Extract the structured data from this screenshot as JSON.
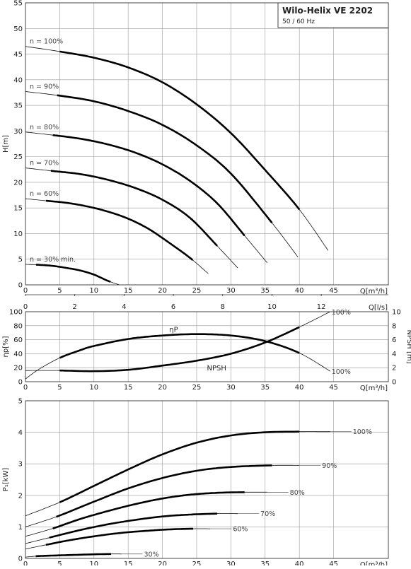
{
  "chart_title": {
    "title": "Wilo-Helix VE 2202",
    "subtitle": "50 / 60 Hz"
  },
  "chart_data": [
    {
      "type": "line",
      "title": "",
      "xlabel": "Q[m³/h]",
      "x2label": "Q[l/s]",
      "ylabel": "H[m]",
      "xlim": [
        0,
        53
      ],
      "ylim": [
        0,
        55
      ],
      "x_ticks": [
        0,
        5,
        10,
        15,
        20,
        25,
        30,
        35,
        40,
        45
      ],
      "x2_ticks": [
        0,
        2,
        4,
        6,
        8,
        10,
        12
      ],
      "y_ticks": [
        0,
        5,
        10,
        15,
        20,
        25,
        30,
        35,
        40,
        45,
        50,
        55
      ],
      "grid": true,
      "series": [
        {
          "name": "n = 100%",
          "x": [
            0,
            5,
            10,
            15,
            20,
            25,
            30,
            35,
            40,
            44.2
          ],
          "y": [
            46.5,
            45.5,
            44.3,
            42.4,
            39.5,
            35.2,
            29.6,
            22.4,
            14.7,
            6.7
          ],
          "bold_range": [
            5,
            40
          ]
        },
        {
          "name": "n = 90%",
          "x": [
            0,
            5,
            10,
            15,
            20,
            25,
            30,
            36,
            39.8
          ],
          "y": [
            37.7,
            36.9,
            35.8,
            33.9,
            31.2,
            27.2,
            21.7,
            12.1,
            5.4
          ],
          "bold_range": [
            4.5,
            36
          ]
        },
        {
          "name": "n = 80%",
          "x": [
            0,
            4,
            8,
            12,
            16,
            20,
            24,
            28,
            32,
            35.3
          ],
          "y": [
            29.8,
            29.2,
            28.5,
            27.4,
            25.8,
            23.5,
            20.3,
            15.9,
            9.6,
            4.3
          ],
          "bold_range": [
            4,
            32
          ]
        },
        {
          "name": "n = 70%",
          "x": [
            0,
            4,
            8,
            12,
            16,
            20,
            24,
            28,
            31
          ],
          "y": [
            22.8,
            22.2,
            21.6,
            20.5,
            18.9,
            16.6,
            13.1,
            7.6,
            3.3
          ],
          "bold_range": [
            3.5,
            28
          ]
        },
        {
          "name": "n = 60%",
          "x": [
            0,
            3,
            6,
            9,
            12,
            15,
            18,
            21,
            24,
            26.7
          ],
          "y": [
            16.8,
            16.4,
            16.0,
            15.3,
            14.3,
            12.9,
            10.9,
            8.2,
            5.3,
            2.2
          ],
          "bold_range": [
            3,
            24.5
          ]
        },
        {
          "name": "n = 30% min.",
          "x": [
            0,
            2,
            4,
            6,
            8,
            10,
            12,
            13.7
          ],
          "y": [
            4.0,
            3.9,
            3.7,
            3.3,
            2.8,
            2.0,
            0.8,
            0
          ],
          "bold_range": [
            1.5,
            12.5
          ]
        }
      ]
    },
    {
      "type": "line",
      "title": "",
      "xlabel": "Q[m³/h]",
      "ylabel": "ηp[%]",
      "y2label": "NPSH [m]",
      "xlim": [
        0,
        53
      ],
      "ylim": [
        0,
        100
      ],
      "y2lim": [
        0,
        10
      ],
      "x_ticks": [
        0,
        5,
        10,
        15,
        20,
        25,
        30,
        35,
        40,
        45
      ],
      "y_ticks": [
        0,
        20,
        40,
        60,
        80,
        100
      ],
      "y2_ticks": [
        0,
        2,
        4,
        6,
        8,
        10
      ],
      "grid": true,
      "annotations": [
        "100%",
        "100%"
      ],
      "series": [
        {
          "name": "ηP",
          "axis": "left",
          "x": [
            0,
            2,
            5,
            8,
            10,
            15,
            20,
            25,
            30,
            35,
            40,
            44.5
          ],
          "y": [
            4,
            18,
            34,
            45,
            51,
            61,
            66,
            68,
            66,
            58,
            41,
            15
          ],
          "bold_range": [
            5,
            40
          ]
        },
        {
          "name": "NPSH",
          "axis": "right",
          "x": [
            0,
            5,
            10,
            15,
            20,
            25,
            30,
            35,
            40,
            44.5
          ],
          "y": [
            1.6,
            1.6,
            1.5,
            1.7,
            2.3,
            3.0,
            4.0,
            5.6,
            7.8,
            10
          ],
          "bold_range": [
            5,
            40
          ]
        }
      ]
    },
    {
      "type": "line",
      "title": "",
      "xlabel": "Q[m³/h]",
      "ylabel": "P₁[kW]",
      "xlim": [
        0,
        53
      ],
      "ylim": [
        0,
        5
      ],
      "x_ticks": [
        0,
        5,
        10,
        15,
        20,
        25,
        30,
        35,
        40,
        45
      ],
      "y_ticks": [
        0,
        1,
        2,
        3,
        4,
        5
      ],
      "grid": true,
      "series": [
        {
          "name": "100%",
          "x": [
            0,
            5,
            10,
            15,
            20,
            25,
            30,
            35,
            40,
            44.5
          ],
          "y": [
            1.35,
            1.78,
            2.3,
            2.82,
            3.3,
            3.67,
            3.9,
            4.0,
            4.02,
            4.02
          ],
          "bold_range": [
            5,
            40
          ]
        },
        {
          "name": "90%",
          "x": [
            0,
            4.5,
            10,
            15,
            20,
            25,
            30,
            36,
            40
          ],
          "y": [
            1.0,
            1.32,
            1.8,
            2.22,
            2.55,
            2.78,
            2.9,
            2.95,
            2.95
          ],
          "bold_range": [
            4.5,
            36
          ]
        },
        {
          "name": "80%",
          "x": [
            0,
            4,
            8,
            12,
            16,
            20,
            24,
            28,
            32,
            35.3
          ],
          "y": [
            0.7,
            0.95,
            1.25,
            1.5,
            1.72,
            1.9,
            2.02,
            2.08,
            2.1,
            2.1
          ],
          "bold_range": [
            4,
            32
          ]
        },
        {
          "name": "70%",
          "x": [
            0,
            3.5,
            8,
            12,
            16,
            20,
            24,
            28,
            31
          ],
          "y": [
            0.47,
            0.66,
            0.9,
            1.08,
            1.22,
            1.33,
            1.39,
            1.42,
            1.42
          ],
          "bold_range": [
            3.5,
            28
          ]
        },
        {
          "name": "60%",
          "x": [
            0,
            3,
            6,
            10,
            14,
            18,
            21,
            24.5,
            27
          ],
          "y": [
            0.3,
            0.43,
            0.56,
            0.7,
            0.81,
            0.88,
            0.92,
            0.94,
            0.94
          ],
          "bold_range": [
            3,
            24.5
          ]
        },
        {
          "name": "30%",
          "x": [
            0,
            1.5,
            4,
            7,
            10,
            12.5,
            14
          ],
          "y": [
            0.04,
            0.07,
            0.09,
            0.11,
            0.13,
            0.14,
            0.14
          ],
          "bold_range": [
            1.5,
            12.5
          ]
        }
      ]
    }
  ]
}
